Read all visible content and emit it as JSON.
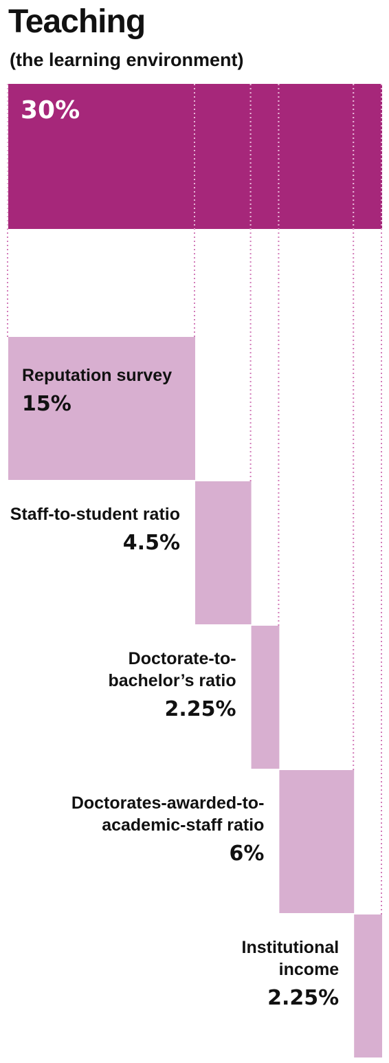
{
  "chart_data": {
    "type": "waterfall",
    "title": "Teaching",
    "subtitle": "(the learning environment)",
    "total": {
      "value": 30,
      "value_label": "30%",
      "color": "#a6277a"
    },
    "categories": [
      "Reputation survey",
      "Staff-to-student ratio",
      "Doctorate-to-bachelor’s ratio",
      "Doctorates-awarded-to-academic-staff ratio",
      "Institutional income"
    ],
    "values": [
      15,
      4.5,
      2.25,
      6,
      2.25
    ],
    "value_labels": [
      "15%",
      "4.5%",
      "2.25%",
      "6%",
      "2.25%"
    ],
    "color": "#d8afd0"
  }
}
